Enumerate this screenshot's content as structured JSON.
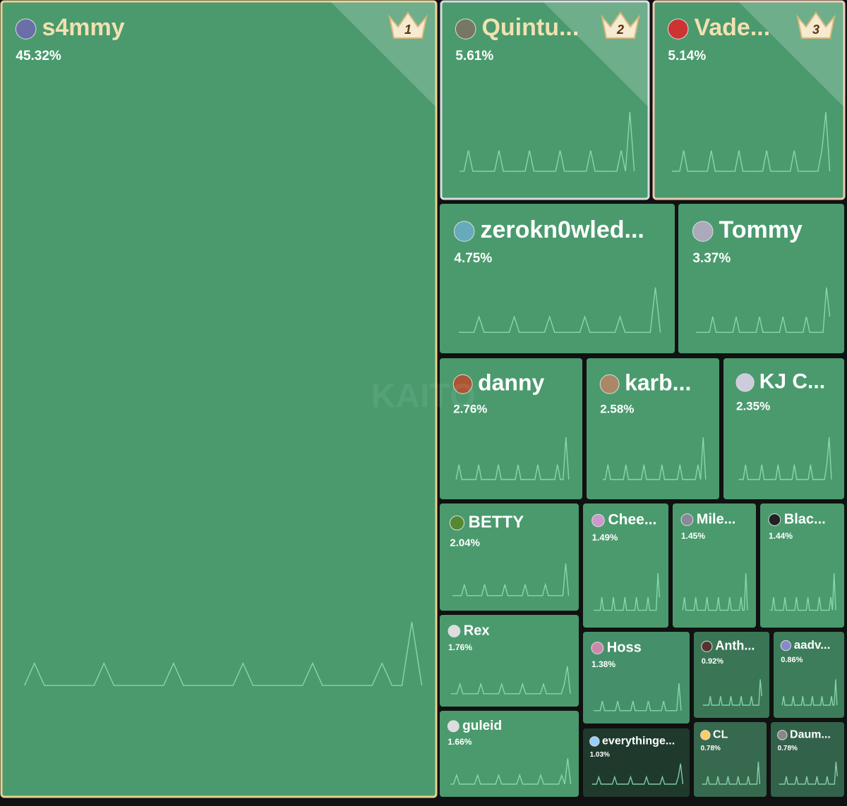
{
  "chart_data": {
    "type": "treemap",
    "watermark": "KAITO",
    "categories": [
      "s4mmy",
      "Quintu...",
      "Vade...",
      "zerokn0wled...",
      "Tommy",
      "danny",
      "karb...",
      "KJ C...",
      "BETTY",
      "Chee...",
      "Mile...",
      "Blac...",
      "Rex",
      "Hoss",
      "Anth...",
      "aadv...",
      "guleid",
      "everythinge...",
      "CL",
      "Daum..."
    ],
    "values": [
      45.32,
      5.61,
      5.14,
      4.75,
      3.37,
      2.76,
      2.58,
      2.35,
      2.04,
      1.49,
      1.45,
      1.44,
      1.76,
      1.38,
      0.92,
      0.86,
      1.66,
      1.03,
      0.78,
      0.78
    ],
    "value_labels": [
      "45.32%",
      "5.61%",
      "5.14%",
      "4.75%",
      "3.37%",
      "2.76%",
      "2.58%",
      "2.35%",
      "2.04%",
      "1.49%",
      "1.45%",
      "1.44%",
      "1.76%",
      "1.38%",
      "0.92%",
      "0.86%",
      "1.66%",
      "1.03%",
      "0.78%",
      "0.78%"
    ],
    "colors": [
      "#4a9a6e",
      "#4a9a6e",
      "#4a9a6e",
      "#4a9a6e",
      "#4a9a6e",
      "#4a9a6e",
      "#4a9a6e",
      "#4a9a6e",
      "#4a9a6e",
      "#4a9a6e",
      "#4a9a6e",
      "#4a9a6e",
      "#4a9a6e",
      "#45906a",
      "#3a7656",
      "#3d7d5b",
      "#4a9a6e",
      "#1f3a2d",
      "#37694f",
      "#33624a"
    ],
    "ranks": [
      1,
      2,
      3
    ]
  }
}
